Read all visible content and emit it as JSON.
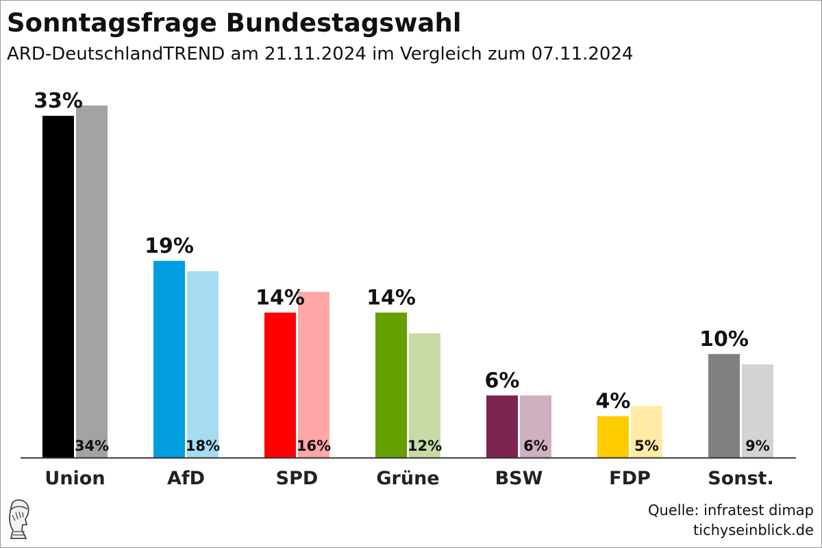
{
  "title": "Sonntagsfrage Bundestagswahl",
  "subtitle": "ARD-DeutschlandTREND am 21.11.2024 im Vergleich zum 07.11.2024",
  "source": "Quelle: infratest dimap",
  "website": "tichyseinblick.de",
  "chart_data": {
    "type": "bar",
    "categories": [
      "Union",
      "AfD",
      "SPD",
      "Grüne",
      "BSW",
      "FDP",
      "Sonst."
    ],
    "series": [
      {
        "values": [
          33,
          19,
          14,
          14,
          6,
          4,
          10
        ],
        "labels": [
          "33%",
          "19%",
          "14%",
          "14%",
          "6%",
          "4%",
          "10%"
        ]
      },
      {
        "values": [
          34,
          18,
          16,
          12,
          6,
          5,
          9
        ],
        "labels": [
          "34%",
          "18%",
          "16%",
          "12%",
          "6%",
          "5%",
          "9%"
        ]
      }
    ],
    "colors_current": [
      "#000000",
      "#009ee0",
      "#ff0000",
      "#64a000",
      "#7b2450",
      "#ffcc00",
      "#808080"
    ],
    "colors_previous": [
      "#a3a3a3",
      "#a6dcf2",
      "#ffa6a6",
      "#c8daa6",
      "#cfb0c0",
      "#ffeba6",
      "#d3d3d3"
    ],
    "ylim": [
      0,
      34
    ],
    "grid": false,
    "legend": "none"
  }
}
